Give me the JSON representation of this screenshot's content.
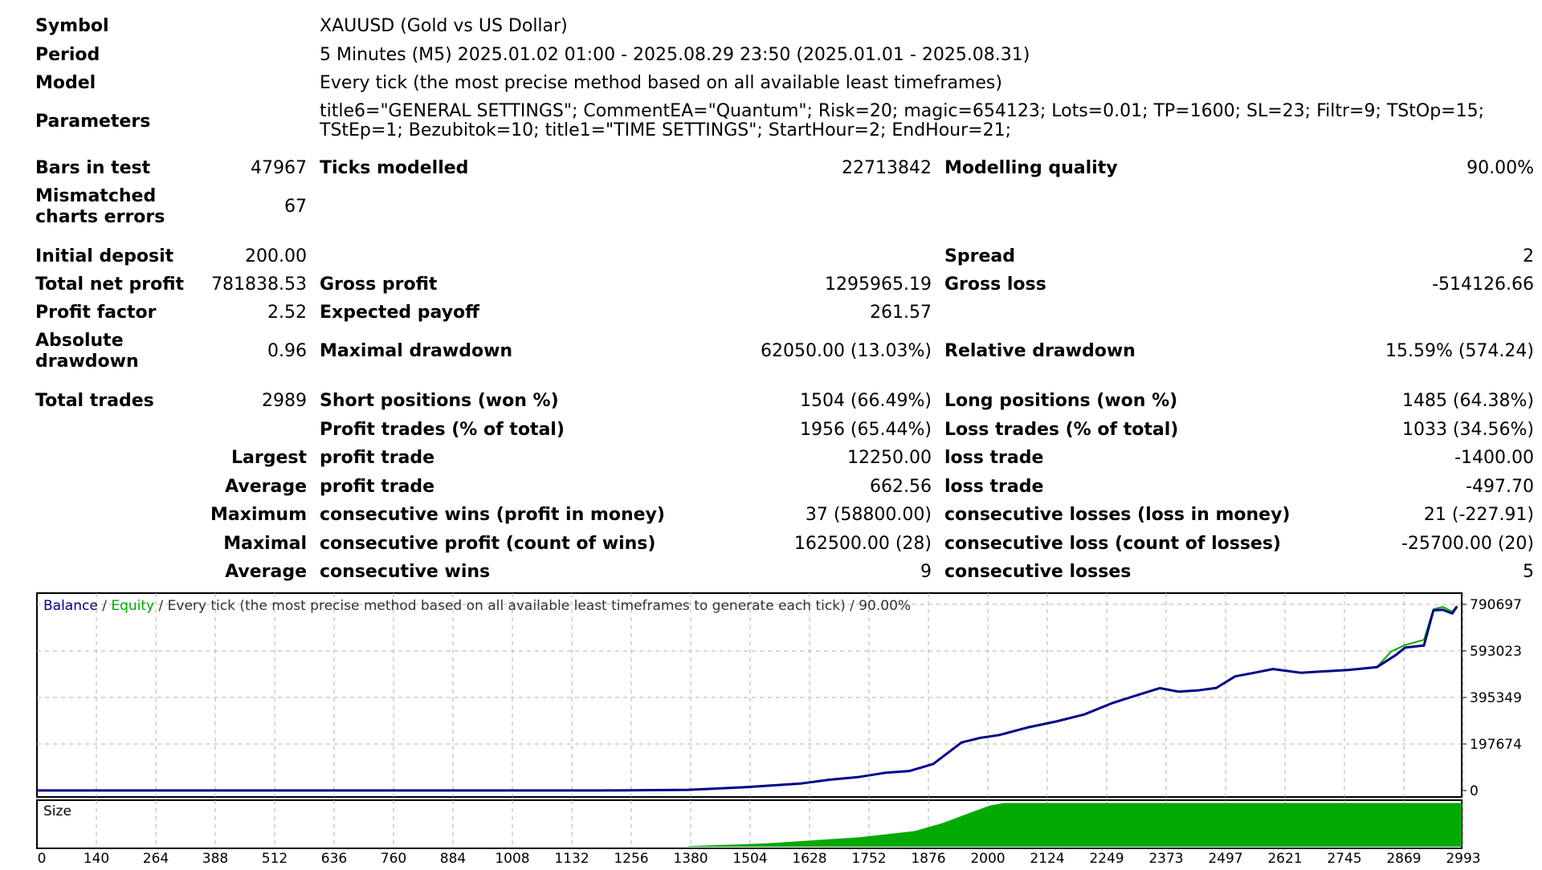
{
  "header": {
    "symbol_label": "Symbol",
    "symbol_value": "XAUUSD (Gold vs US Dollar)",
    "period_label": "Period",
    "period_value": "5 Minutes (M5) 2025.01.02 01:00 - 2025.08.29 23:50 (2025.01.01 - 2025.08.31)",
    "model_label": "Model",
    "model_value": "Every tick (the most precise method based on all available least timeframes)",
    "parameters_label": "Parameters",
    "parameters_line1": "title6=\"GENERAL SETTINGS\"; CommentEA=\"Quantum\"; Risk=20; magic=654123; Lots=0.01; TP=1600; SL=23; Filtr=9; TStOp=15;",
    "parameters_line2": "TStEp=1; Bezubitok=10; title1=\"TIME SETTINGS\"; StartHour=2; EndHour=21;"
  },
  "stats": {
    "bars_label": "Bars in test",
    "bars_value": "47967",
    "ticks_label": "Ticks modelled",
    "ticks_value": "22713842",
    "quality_label": "Modelling quality",
    "quality_value": "90.00%",
    "mismatch_label": "Mismatched charts errors",
    "mismatch_value": "67",
    "deposit_label": "Initial deposit",
    "deposit_value": "200.00",
    "spread_label": "Spread",
    "spread_value": "2",
    "netprofit_label": "Total net profit",
    "netprofit_value": "781838.53",
    "grossprofit_label": "Gross profit",
    "grossprofit_value": "1295965.19",
    "grossloss_label": "Gross loss",
    "grossloss_value": "-514126.66",
    "pf_label": "Profit factor",
    "pf_value": "2.52",
    "ep_label": "Expected payoff",
    "ep_value": "261.57",
    "absdd_label": "Absolute drawdown",
    "absdd_value": "0.96",
    "maxdd_label": "Maximal drawdown",
    "maxdd_value": "62050.00 (13.03%)",
    "reldd_label": "Relative drawdown",
    "reldd_value": "15.59% (574.24)",
    "trades_label": "Total trades",
    "trades_value": "2989",
    "short_label": "Short positions (won %)",
    "short_value": "1504 (66.49%)",
    "long_label": "Long positions (won %)",
    "long_value": "1485 (64.38%)",
    "ptrades_label": "Profit trades (% of total)",
    "ptrades_value": "1956 (65.44%)",
    "ltrades_label": "Loss trades (% of total)",
    "ltrades_value": "1033 (34.56%)",
    "largest_label": "Largest",
    "largest_p_label": "profit trade",
    "largest_p_value": "12250.00",
    "largest_l_label": "loss trade",
    "largest_l_value": "-1400.00",
    "average_label": "Average",
    "average_p_label": "profit trade",
    "average_p_value": "662.56",
    "average_l_label": "loss trade",
    "average_l_value": "-497.70",
    "maximum_label": "Maximum",
    "max_w_label": "consecutive wins (profit in money)",
    "max_w_value": "37 (58800.00)",
    "max_l_label": "consecutive losses (loss in money)",
    "max_l_value": "21 (-227.91)",
    "maximal_label": "Maximal",
    "mxl_p_label": "consecutive profit (count of wins)",
    "mxl_p_value": "162500.00 (28)",
    "mxl_l_label": "consecutive loss (count of losses)",
    "mxl_l_value": "-25700.00 (20)",
    "avg2_label": "Average",
    "avg_w_label": "consecutive wins",
    "avg_w_value": "9",
    "avg_l_label": "consecutive losses",
    "avg_l_value": "5"
  },
  "chart_data": {
    "type": "line",
    "title_balance": "Balance",
    "title_sep1": " / ",
    "title_equity": "Equity",
    "title_rest": " / Every tick (the most precise method based on all available least timeframes to generate each tick) / 90.00%",
    "size_label": "Size",
    "xlim": [
      0,
      3020
    ],
    "ylim": [
      0,
      790697
    ],
    "yticks": [
      "790697",
      "593023",
      "395349",
      "197674",
      "0"
    ],
    "xticks": [
      "0",
      "140",
      "264",
      "388",
      "512",
      "636",
      "760",
      "884",
      "1008",
      "1132",
      "1256",
      "1380",
      "1504",
      "1628",
      "1752",
      "1876",
      "2000",
      "2124",
      "2249",
      "2373",
      "2497",
      "2621",
      "2745",
      "2869",
      "2993"
    ],
    "grid": true,
    "colors": {
      "balance": "#00008b",
      "equity": "#00aa00",
      "size": "#00aa00",
      "grid": "#b0b0b0"
    },
    "series": [
      {
        "name": "Balance",
        "x": [
          0,
          300,
          600,
          900,
          1200,
          1380,
          1500,
          1620,
          1680,
          1740,
          1800,
          1850,
          1900,
          1960,
          2000,
          2040,
          2100,
          2160,
          2220,
          2280,
          2340,
          2380,
          2420,
          2460,
          2500,
          2540,
          2580,
          2620,
          2680,
          2720,
          2780,
          2840,
          2880,
          2900,
          2940,
          2960,
          2980,
          3000,
          3010
        ],
        "y": [
          200,
          200,
          200,
          200,
          200,
          3000,
          14000,
          30000,
          46000,
          57000,
          76000,
          83000,
          113000,
          204000,
          224000,
          236000,
          268000,
          293000,
          323000,
          372000,
          410000,
          435000,
          420000,
          425000,
          436000,
          485000,
          500000,
          516000,
          500000,
          505000,
          512000,
          524000,
          575000,
          607000,
          616000,
          765000,
          768000,
          752000,
          781000
        ]
      },
      {
        "name": "Equity",
        "x": [
          0,
          300,
          600,
          900,
          1200,
          1380,
          1500,
          1620,
          1680,
          1740,
          1800,
          1850,
          1900,
          1960,
          2000,
          2040,
          2100,
          2160,
          2220,
          2280,
          2340,
          2380,
          2420,
          2460,
          2500,
          2540,
          2580,
          2620,
          2680,
          2720,
          2780,
          2840,
          2870,
          2900,
          2940,
          2960,
          2980,
          3000,
          3010
        ],
        "y": [
          200,
          200,
          200,
          200,
          200,
          3000,
          14000,
          30000,
          46000,
          57000,
          76000,
          83000,
          113000,
          204000,
          224000,
          236000,
          268000,
          293000,
          323000,
          372000,
          410000,
          435000,
          420000,
          425000,
          436000,
          485000,
          500000,
          516000,
          500000,
          505000,
          512000,
          524000,
          590000,
          618000,
          640000,
          770000,
          780000,
          760000,
          785000
        ]
      }
    ],
    "size_series": {
      "name": "Size",
      "x": [
        1380,
        1500,
        1560,
        1620,
        1680,
        1740,
        1800,
        1860,
        1920,
        1980,
        2020,
        2050,
        2100,
        2200,
        2400,
        2600,
        2800,
        2993,
        3020
      ],
      "y": [
        1,
        4,
        6,
        9,
        12,
        15,
        20,
        25,
        38,
        55,
        66,
        70,
        70,
        70,
        70,
        70,
        70,
        70,
        70
      ]
    }
  }
}
